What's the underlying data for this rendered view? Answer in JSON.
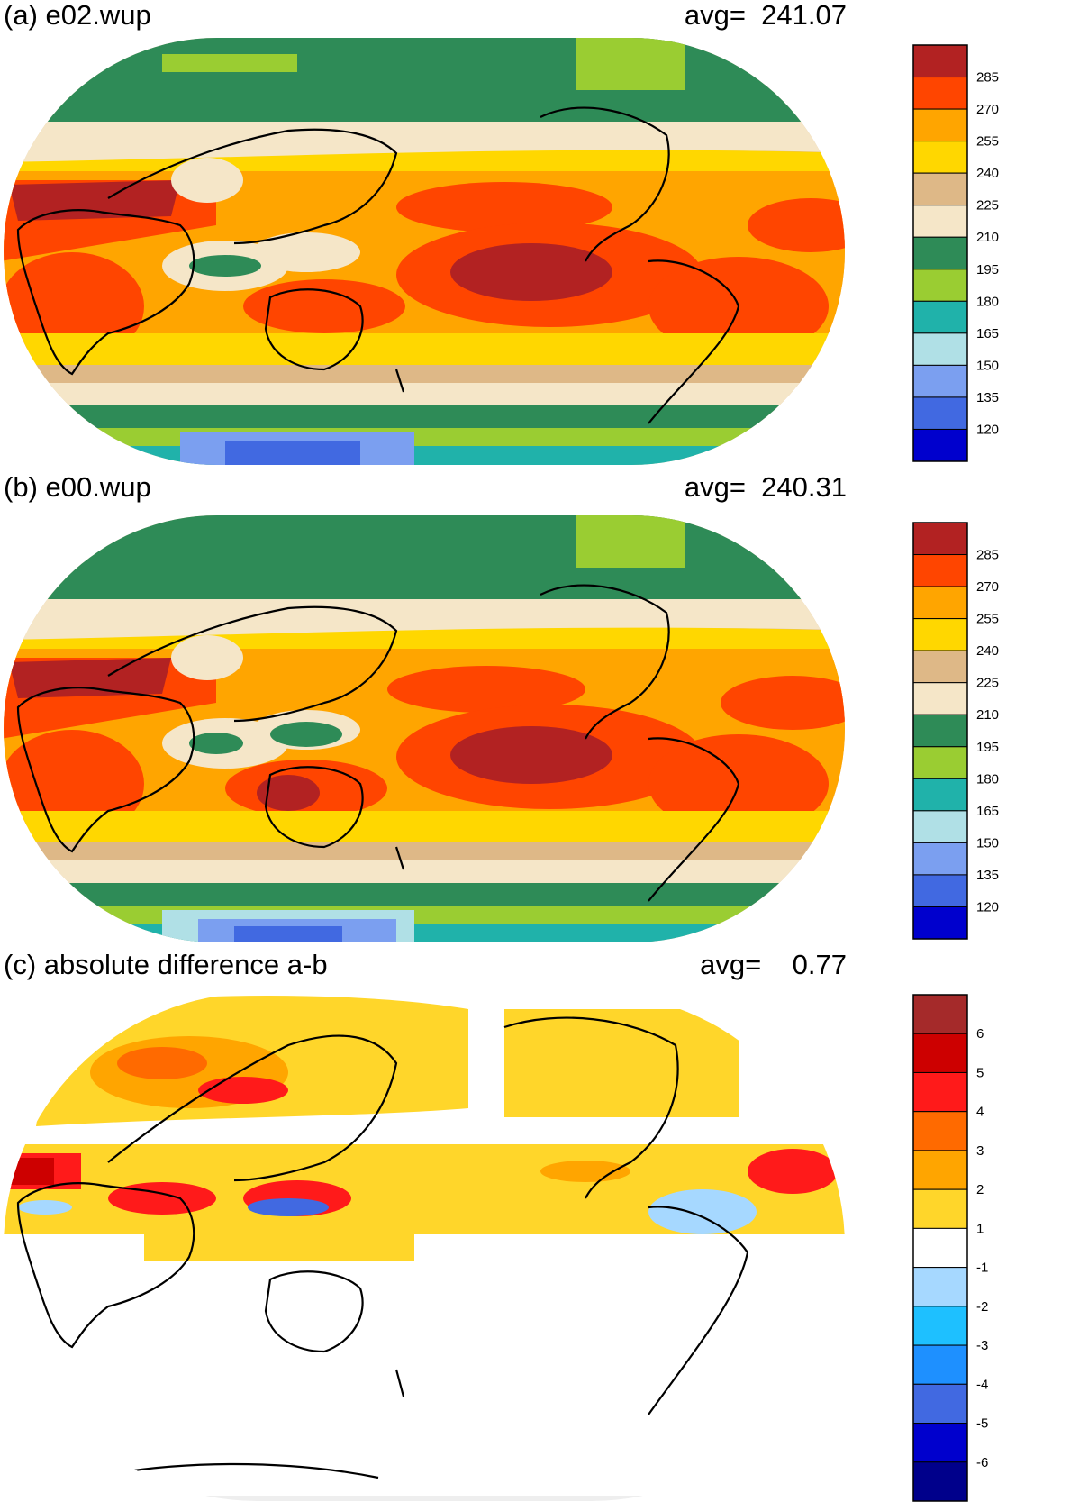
{
  "panels": [
    {
      "id": "a",
      "title": "(a) e02.wup",
      "avg_label": "avg=",
      "avg_value": "241.07",
      "colorbar": {
        "labels": [
          "285",
          "270",
          "255",
          "240",
          "225",
          "210",
          "195",
          "180",
          "165",
          "150",
          "135",
          "120"
        ],
        "colors": [
          "#b22222",
          "#ff4500",
          "#ffa500",
          "#ffd700",
          "#deb887",
          "#f5e6c8",
          "#2e8b57",
          "#9acd32",
          "#20b2aa",
          "#b0e0e6",
          "#7b9ff0",
          "#4169e1",
          "#0000cd"
        ]
      }
    },
    {
      "id": "b",
      "title": "(b) e00.wup",
      "avg_label": "avg=",
      "avg_value": "240.31",
      "colorbar": {
        "labels": [
          "285",
          "270",
          "255",
          "240",
          "225",
          "210",
          "195",
          "180",
          "165",
          "150",
          "135",
          "120"
        ],
        "colors": [
          "#b22222",
          "#ff4500",
          "#ffa500",
          "#ffd700",
          "#deb887",
          "#f5e6c8",
          "#2e8b57",
          "#9acd32",
          "#20b2aa",
          "#b0e0e6",
          "#7b9ff0",
          "#4169e1",
          "#0000cd"
        ]
      }
    },
    {
      "id": "c",
      "title": "(c) absolute difference a-b",
      "avg_label": "avg=",
      "avg_value": "0.77",
      "colorbar": {
        "labels": [
          "6",
          "5",
          "4",
          "3",
          "2",
          "1",
          "-1",
          "-2",
          "-3",
          "-4",
          "-5",
          "-6"
        ],
        "colors": [
          "#a52a2a",
          "#cd0000",
          "#ff1a1a",
          "#ff6a00",
          "#ffa500",
          "#ffd62a",
          "#ffffff",
          "#a6d8ff",
          "#1ec0ff",
          "#1e90ff",
          "#4169e1",
          "#0000cd",
          "#00008b"
        ]
      }
    }
  ]
}
